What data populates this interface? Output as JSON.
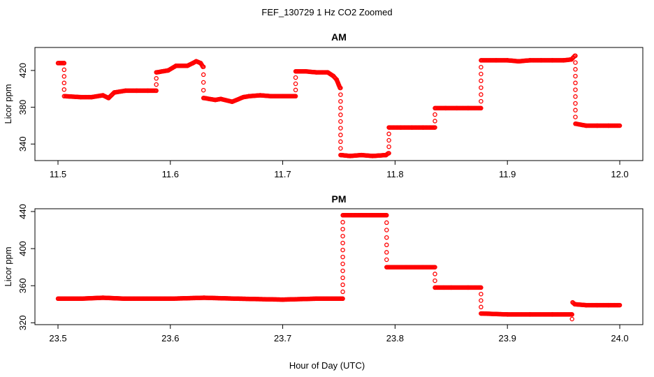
{
  "figure": {
    "title": "FEF_130729  1 Hz CO2 Zoomed",
    "xlabel": "Hour of Day (UTC)"
  },
  "colors": {
    "points": "#ff0000",
    "axes": "#000000",
    "background": "#ffffff"
  },
  "chart_data": [
    {
      "type": "scatter",
      "title": "AM",
      "ylabel": "Licor ppm",
      "xlim": [
        11.5,
        12.0
      ],
      "ylim": [
        322,
        445
      ],
      "x_ticks": [
        "11.5",
        "11.6",
        "11.7",
        "11.8",
        "11.9",
        "12.0"
      ],
      "y_ticks": [
        "340",
        "380",
        "420"
      ],
      "marker": "open-circle",
      "series": [
        {
          "segments": [
            {
              "x": [
                11.5,
                11.5055
              ],
              "y": [
                428,
                428
              ]
            },
            {
              "x": [
                11.5055,
                11.5055
              ],
              "y": [
                428,
                392
              ]
            },
            {
              "x": [
                11.5065,
                11.52,
                11.53,
                11.54,
                11.545,
                11.55,
                11.56,
                11.57,
                11.58,
                11.587
              ],
              "y": [
                392,
                391,
                391,
                393,
                390,
                396,
                398,
                398,
                398,
                398
              ]
            },
            {
              "x": [
                11.5875,
                11.5875
              ],
              "y": [
                398,
                418
              ]
            },
            {
              "x": [
                11.588,
                11.598,
                11.605,
                11.615,
                11.62,
                11.623,
                11.627,
                11.629
              ],
              "y": [
                418,
                420,
                425,
                425,
                428,
                430,
                428,
                424
              ]
            },
            {
              "x": [
                11.6295,
                11.6295
              ],
              "y": [
                424,
                390
              ]
            },
            {
              "x": [
                11.63,
                11.64,
                11.645,
                11.655,
                11.665,
                11.67,
                11.68,
                11.69,
                11.7,
                11.711
              ],
              "y": [
                390,
                388,
                389,
                386,
                391,
                392,
                393,
                392,
                392,
                392
              ]
            },
            {
              "x": [
                11.7115,
                11.7115
              ],
              "y": [
                392,
                419
              ]
            },
            {
              "x": [
                11.712,
                11.72,
                11.73,
                11.74,
                11.745,
                11.748,
                11.75,
                11.751
              ],
              "y": [
                419,
                419,
                418,
                418,
                414,
                410,
                404,
                401
              ]
            },
            {
              "x": [
                11.7515,
                11.7515
              ],
              "y": [
                401,
                328
              ]
            },
            {
              "x": [
                11.752,
                11.76,
                11.77,
                11.78,
                11.792,
                11.794
              ],
              "y": [
                328,
                327,
                328,
                327,
                328,
                330
              ]
            },
            {
              "x": [
                11.7945,
                11.7945
              ],
              "y": [
                330,
                358
              ]
            },
            {
              "x": [
                11.795,
                11.805,
                11.815,
                11.825,
                11.835
              ],
              "y": [
                358,
                358,
                358,
                358,
                358
              ]
            },
            {
              "x": [
                11.8355,
                11.8355
              ],
              "y": [
                358,
                379
              ]
            },
            {
              "x": [
                11.836,
                11.845,
                11.855,
                11.865,
                11.876
              ],
              "y": [
                379,
                379,
                379,
                379,
                379
              ]
            },
            {
              "x": [
                11.8765,
                11.8765
              ],
              "y": [
                379,
                431
              ]
            },
            {
              "x": [
                11.877,
                11.89,
                11.9,
                11.91,
                11.92,
                11.93,
                11.94,
                11.95,
                11.957,
                11.96
              ],
              "y": [
                431,
                431,
                431,
                430,
                431,
                431,
                431,
                431,
                432,
                436
              ]
            },
            {
              "x": [
                11.9605,
                11.9605
              ],
              "y": [
                436,
                362
              ]
            },
            {
              "x": [
                11.961,
                11.97,
                11.98,
                11.99,
                12.0
              ],
              "y": [
                362,
                360,
                360,
                360,
                360
              ]
            }
          ]
        }
      ]
    },
    {
      "type": "scatter",
      "title": "PM",
      "ylabel": "Licor ppm",
      "xlim": [
        23.5,
        24.0
      ],
      "ylim": [
        318,
        443
      ],
      "x_ticks": [
        "23.5",
        "23.6",
        "23.7",
        "23.8",
        "23.9",
        "24.0"
      ],
      "y_ticks": [
        "320",
        "360",
        "400",
        "440"
      ],
      "marker": "open-circle",
      "series": [
        {
          "segments": [
            {
              "x": [
                23.5,
                23.52,
                23.54,
                23.56,
                23.6,
                23.63,
                23.66,
                23.7,
                23.73,
                23.753
              ],
              "y": [
                346,
                346,
                347,
                346,
                346,
                347,
                346,
                345,
                346,
                346
              ]
            },
            {
              "x": [
                23.7535,
                23.7535
              ],
              "y": [
                346,
                436
              ]
            },
            {
              "x": [
                23.754,
                23.77,
                23.78,
                23.792
              ],
              "y": [
                436,
                436,
                436,
                436
              ]
            },
            {
              "x": [
                23.7925,
                23.7925
              ],
              "y": [
                436,
                380
              ]
            },
            {
              "x": [
                23.793,
                23.81,
                23.825,
                23.835
              ],
              "y": [
                380,
                380,
                380,
                380
              ]
            },
            {
              "x": [
                23.8355,
                23.8355
              ],
              "y": [
                380,
                358
              ]
            },
            {
              "x": [
                23.836,
                23.85,
                23.865,
                23.876
              ],
              "y": [
                358,
                358,
                358,
                358
              ]
            },
            {
              "x": [
                23.8765,
                23.8765
              ],
              "y": [
                358,
                330
              ]
            },
            {
              "x": [
                23.877,
                23.9,
                23.92,
                23.94,
                23.957
              ],
              "y": [
                330,
                329,
                329,
                329,
                329
              ]
            },
            {
              "x": [
                23.9575,
                23.9575
              ],
              "y": [
                329,
                324
              ]
            },
            {
              "x": [
                23.958,
                23.96,
                23.97,
                23.98,
                23.99,
                24.0
              ],
              "y": [
                342,
                340,
                339,
                339,
                339,
                339
              ]
            }
          ]
        }
      ]
    }
  ]
}
